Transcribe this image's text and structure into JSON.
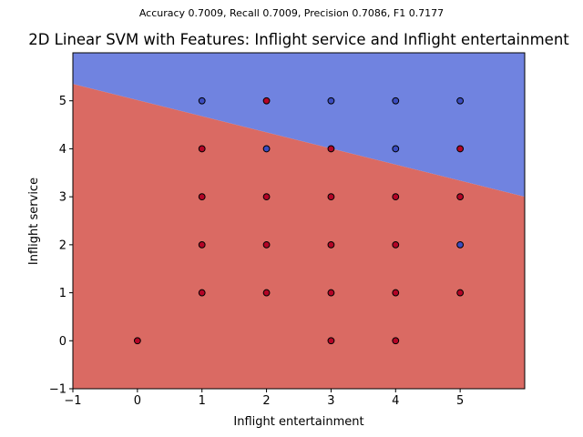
{
  "figure": {
    "suptitle": "Accuracy 0.7009, Recall 0.7009, Precision 0.7086, F1 0.7177"
  },
  "chart_data": {
    "type": "scatter",
    "title": "2D Linear SVM with Features: Inflight service and Inflight entertainment",
    "xlabel": "Inflight entertainment",
    "ylabel": "Inflight service",
    "xlim": [
      -1,
      6
    ],
    "ylim": [
      -1,
      6
    ],
    "xticks": [
      -1,
      0,
      1,
      2,
      3,
      4,
      5
    ],
    "yticks": [
      -1,
      0,
      1,
      2,
      3,
      4,
      5
    ],
    "grid": false,
    "decision_boundary": {
      "x": [
        -1,
        6
      ],
      "y": [
        5.35,
        3.0
      ],
      "upper_region_color": "#7083e0",
      "lower_region_color": "#da6a63"
    },
    "class_colors": {
      "0": "#b40426",
      "1": "#3b4cc0"
    },
    "points": [
      {
        "x": 0,
        "y": 0,
        "class": 0
      },
      {
        "x": 1,
        "y": 1,
        "class": 0
      },
      {
        "x": 1,
        "y": 2,
        "class": 0
      },
      {
        "x": 1,
        "y": 3,
        "class": 0
      },
      {
        "x": 1,
        "y": 4,
        "class": 0
      },
      {
        "x": 1,
        "y": 5,
        "class": 1
      },
      {
        "x": 2,
        "y": 1,
        "class": 0
      },
      {
        "x": 2,
        "y": 2,
        "class": 0
      },
      {
        "x": 2,
        "y": 3,
        "class": 0
      },
      {
        "x": 2,
        "y": 4,
        "class": 1
      },
      {
        "x": 2,
        "y": 5,
        "class": 0
      },
      {
        "x": 3,
        "y": 0,
        "class": 0
      },
      {
        "x": 3,
        "y": 1,
        "class": 0
      },
      {
        "x": 3,
        "y": 2,
        "class": 0
      },
      {
        "x": 3,
        "y": 3,
        "class": 0
      },
      {
        "x": 3,
        "y": 4,
        "class": 0
      },
      {
        "x": 3,
        "y": 5,
        "class": 1
      },
      {
        "x": 4,
        "y": 0,
        "class": 0
      },
      {
        "x": 4,
        "y": 1,
        "class": 0
      },
      {
        "x": 4,
        "y": 2,
        "class": 0
      },
      {
        "x": 4,
        "y": 3,
        "class": 0
      },
      {
        "x": 4,
        "y": 4,
        "class": 1
      },
      {
        "x": 4,
        "y": 5,
        "class": 1
      },
      {
        "x": 5,
        "y": 1,
        "class": 0
      },
      {
        "x": 5,
        "y": 2,
        "class": 1
      },
      {
        "x": 5,
        "y": 3,
        "class": 0
      },
      {
        "x": 5,
        "y": 4,
        "class": 0
      },
      {
        "x": 5,
        "y": 5,
        "class": 1
      }
    ]
  }
}
